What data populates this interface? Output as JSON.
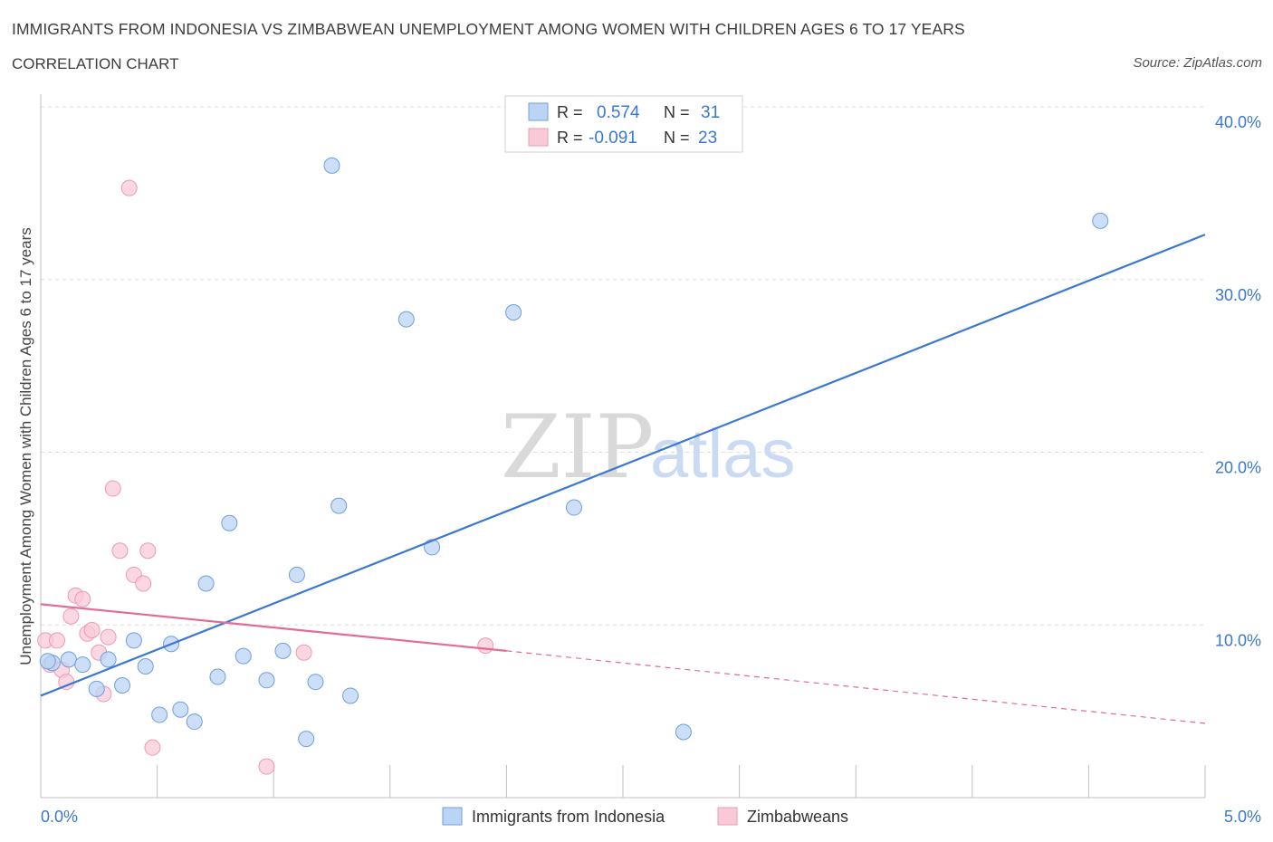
{
  "title": "IMMIGRANTS FROM INDONESIA VS ZIMBABWEAN UNEMPLOYMENT AMONG WOMEN WITH CHILDREN AGES 6 TO 17 YEARS",
  "subtitle": "CORRELATION CHART",
  "source": "Source: ZipAtlas.com",
  "watermark": {
    "zip": "ZIP",
    "atlas": "atlas"
  },
  "colors": {
    "blue": "#3a78d1",
    "blue_fill": "#bcd4f4",
    "pink": "#e36b97",
    "pink_fill": "#f9c9d8",
    "grid": "#dddddd",
    "tick_label": "#3a78d1"
  },
  "legend_stats": [
    {
      "r_label": "R =",
      "r_value": "0.574",
      "n_label": "N =",
      "n_value": "31"
    },
    {
      "r_label": "R =",
      "r_value": "-0.091",
      "n_label": "N =",
      "n_value": "23"
    }
  ],
  "chart_data": {
    "type": "scatter",
    "title": "IMMIGRANTS FROM INDONESIA VS ZIMBABWEAN UNEMPLOYMENT AMONG WOMEN WITH CHILDREN AGES 6 TO 17 YEARS",
    "xlabel": "",
    "ylabel": "Unemployment Among Women with Children Ages 6 to 17 years",
    "xlim": [
      0,
      5.0
    ],
    "ylim": [
      0,
      40.0
    ],
    "x_tick_labels": [
      "0.0%",
      "5.0%"
    ],
    "y_tick_labels": [
      "10.0%",
      "20.0%",
      "30.0%",
      "40.0%"
    ],
    "y_ticks": [
      10,
      20,
      30,
      40
    ],
    "series": [
      {
        "name": "Immigrants from Indonesia",
        "r": 0.574,
        "n": 31,
        "trend": {
          "x0": 0.0,
          "y0": 5.9,
          "x1": 5.0,
          "y1": 32.6,
          "dashed_to": null
        },
        "points": [
          [
            0.05,
            7.8
          ],
          [
            0.12,
            8.0
          ],
          [
            0.18,
            7.7
          ],
          [
            0.24,
            6.3
          ],
          [
            0.29,
            8.0
          ],
          [
            0.35,
            6.5
          ],
          [
            0.4,
            9.1
          ],
          [
            0.45,
            7.6
          ],
          [
            0.51,
            4.8
          ],
          [
            0.56,
            8.9
          ],
          [
            0.6,
            5.1
          ],
          [
            0.66,
            4.4
          ],
          [
            0.71,
            12.4
          ],
          [
            0.76,
            7.0
          ],
          [
            0.81,
            15.9
          ],
          [
            0.87,
            8.2
          ],
          [
            0.97,
            6.8
          ],
          [
            1.04,
            8.5
          ],
          [
            1.1,
            12.9
          ],
          [
            1.14,
            3.4
          ],
          [
            1.18,
            6.7
          ],
          [
            1.25,
            36.6
          ],
          [
            1.28,
            16.9
          ],
          [
            1.33,
            5.9
          ],
          [
            1.57,
            27.7
          ],
          [
            1.68,
            14.5
          ],
          [
            2.03,
            28.1
          ],
          [
            2.29,
            16.8
          ],
          [
            2.76,
            3.8
          ],
          [
            4.55,
            33.4
          ],
          [
            0.03,
            7.9
          ]
        ]
      },
      {
        "name": "Zimbabweans",
        "r": -0.091,
        "n": 23,
        "trend": {
          "x0": 0.0,
          "y0": 11.2,
          "x1": 2.0,
          "y1": 8.5,
          "dashed_to": {
            "x": 5.0,
            "y": 4.3
          }
        },
        "points": [
          [
            0.02,
            9.1
          ],
          [
            0.04,
            7.7
          ],
          [
            0.07,
            9.1
          ],
          [
            0.09,
            7.4
          ],
          [
            0.11,
            6.7
          ],
          [
            0.13,
            10.5
          ],
          [
            0.15,
            11.7
          ],
          [
            0.18,
            11.5
          ],
          [
            0.2,
            9.5
          ],
          [
            0.22,
            9.7
          ],
          [
            0.25,
            8.4
          ],
          [
            0.27,
            6.0
          ],
          [
            0.29,
            9.3
          ],
          [
            0.31,
            17.9
          ],
          [
            0.34,
            14.3
          ],
          [
            0.38,
            35.3
          ],
          [
            0.4,
            12.9
          ],
          [
            0.44,
            12.4
          ],
          [
            0.46,
            14.3
          ],
          [
            0.48,
            2.9
          ],
          [
            0.97,
            1.8
          ],
          [
            1.13,
            8.4
          ],
          [
            1.91,
            8.8
          ]
        ]
      }
    ]
  }
}
